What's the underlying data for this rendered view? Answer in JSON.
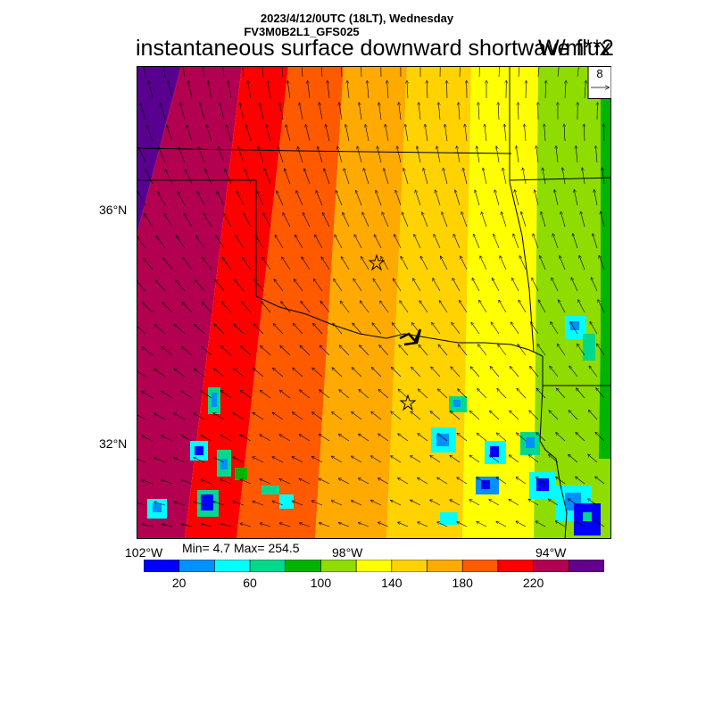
{
  "header": {
    "datetime": "2023/4/12/0UTC (18LT), Wednesday",
    "model": "FV3M0B2L1_GFS025",
    "title": "instantaneous surface downward shortwave flux",
    "units": "W/m**2"
  },
  "map": {
    "lat_labels": [
      "36°N",
      "32°N"
    ],
    "lon_labels": [
      "102°W",
      "98°W",
      "94°W"
    ],
    "vector_key": {
      "value": "8"
    },
    "stats": "Min= 4.7 Max= 254.5",
    "markers": [
      "star",
      "star"
    ]
  },
  "colorbar": {
    "colors": [
      "#0000ff",
      "#0090ff",
      "#00ffff",
      "#00d98c",
      "#00b400",
      "#8fdc00",
      "#ffff00",
      "#ffd200",
      "#ffaa00",
      "#ff5a00",
      "#ff0000",
      "#b40050",
      "#64008c"
    ],
    "labels": [
      "20",
      "60",
      "100",
      "140",
      "180",
      "220"
    ]
  },
  "colors": {
    "accent_dark_purple": "#5a0090",
    "state_lines": "#000000"
  }
}
